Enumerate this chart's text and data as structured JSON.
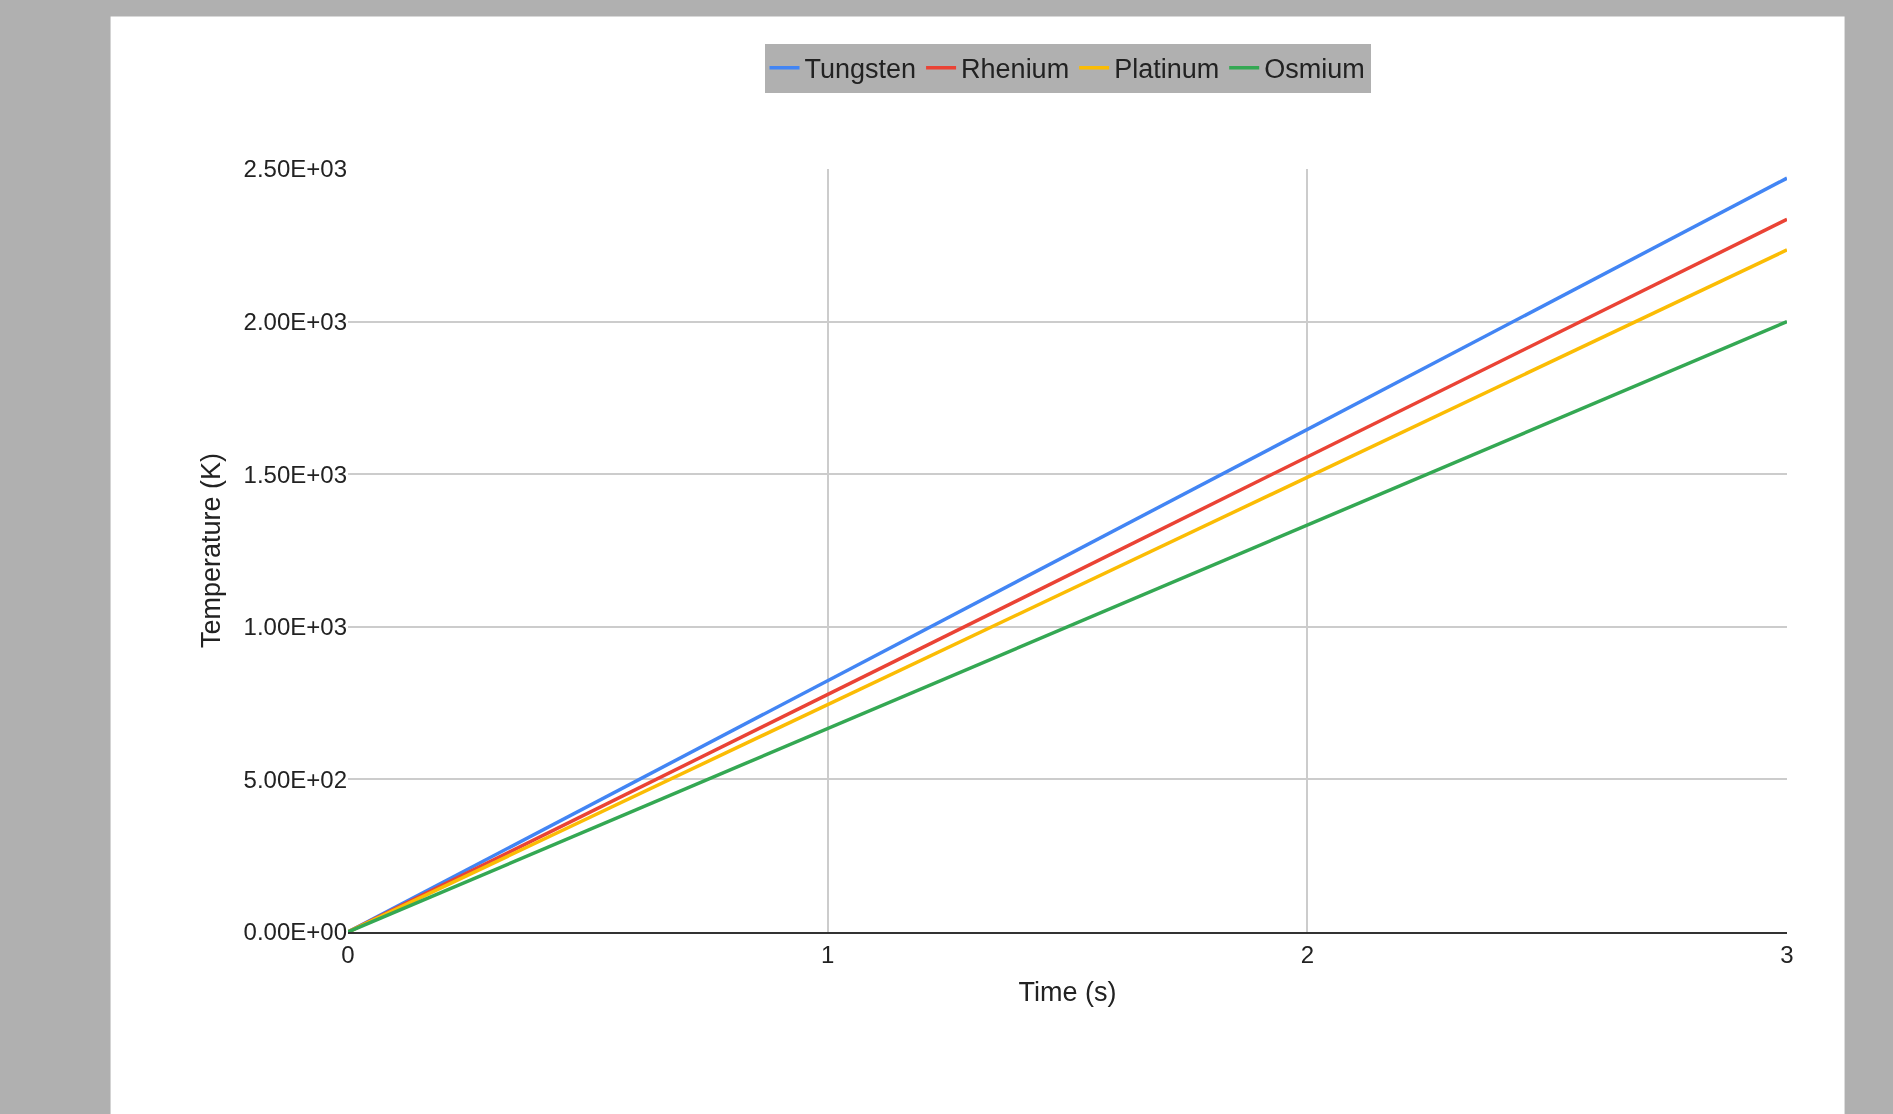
{
  "chart_data": {
    "type": "line",
    "xlabel": "Time (s)",
    "ylabel": "Temperature (K)",
    "x": [
      0,
      3
    ],
    "series": [
      {
        "name": "Tungsten",
        "color": "#4285f4",
        "values": [
          0,
          2470
        ]
      },
      {
        "name": "Rhenium",
        "color": "#ea4335",
        "values": [
          0,
          2335
        ]
      },
      {
        "name": "Platinum",
        "color": "#fbbc04",
        "values": [
          0,
          2235
        ]
      },
      {
        "name": "Osmium",
        "color": "#34a853",
        "values": [
          0,
          2000
        ]
      }
    ],
    "xlim": [
      0,
      3
    ],
    "xticks": [
      0,
      1,
      2,
      3
    ],
    "ylim": [
      0,
      2500
    ],
    "yticks": [
      {
        "value": 0,
        "label": "0.00E+00"
      },
      {
        "value": 500,
        "label": "5.00E+02"
      },
      {
        "value": 1000,
        "label": "1.00E+03"
      },
      {
        "value": 1500,
        "label": "1.50E+03"
      },
      {
        "value": 2000,
        "label": "2.00E+03"
      },
      {
        "value": 2500,
        "label": "2.50E+03"
      }
    ],
    "grid": true,
    "legend": "top",
    "marker": "none",
    "line_style": "solid"
  }
}
